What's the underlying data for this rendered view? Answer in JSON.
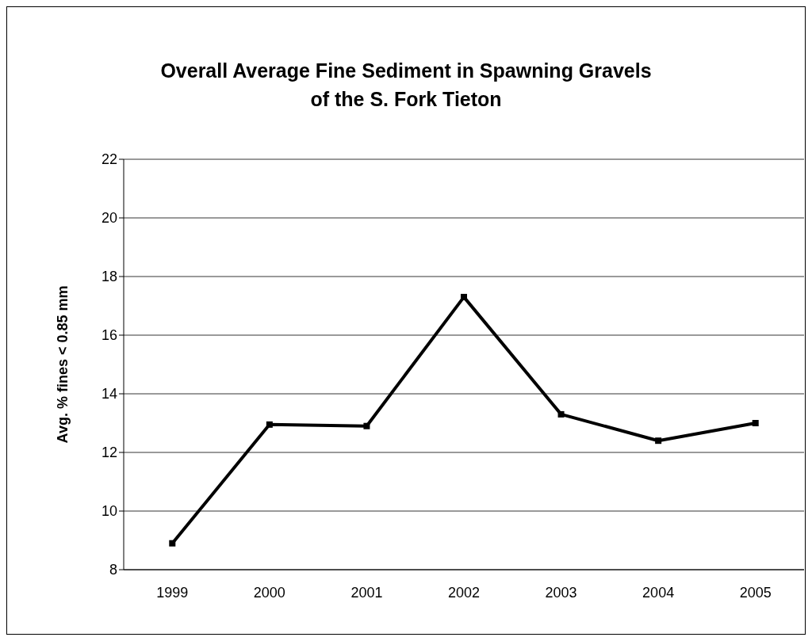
{
  "chart_data": {
    "type": "line",
    "title": "Overall Average Fine Sediment in Spawning Gravels of the S. Fork Tieton",
    "ylabel": "Avg. % fines < 0.85 mm",
    "categories": [
      "1999",
      "2000",
      "2001",
      "2002",
      "2003",
      "2004",
      "2005"
    ],
    "series": [
      {
        "color": "#000000",
        "values": [
          8.9,
          12.95,
          12.9,
          17.3,
          13.3,
          12.4,
          13.0
        ]
      }
    ],
    "ylim": [
      8,
      22
    ],
    "yticks": [
      8,
      10,
      12,
      14,
      16,
      18,
      20,
      22
    ],
    "grid": "y",
    "legend": false,
    "marker": "square",
    "line_style": "solid"
  }
}
